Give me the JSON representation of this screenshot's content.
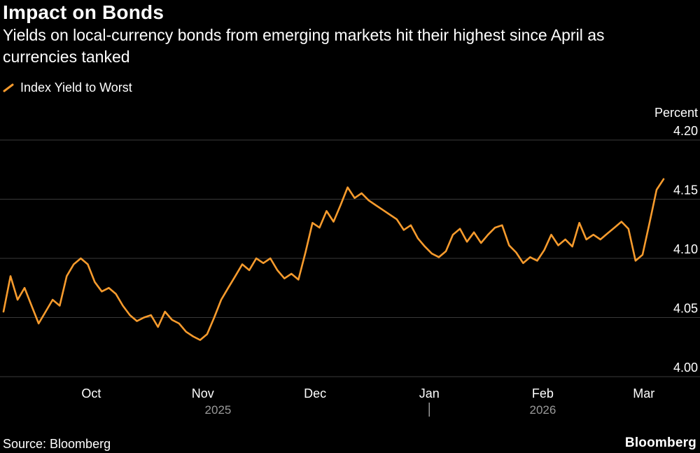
{
  "header": {
    "title": "Impact on Bonds",
    "subtitle": "Yields on local-currency bonds from emerging markets hit their highest since April as currencies tanked"
  },
  "legend": {
    "label": "Index Yield to Worst"
  },
  "footer": {
    "source": "Source: Bloomberg",
    "logo": "Bloomberg"
  },
  "chart_data": {
    "type": "line",
    "title": "Impact on Bonds",
    "ylabel": "Percent",
    "ylim": [
      4.0,
      4.2
    ],
    "yticks": [
      "4.20",
      "4.15",
      "4.10",
      "4.05",
      "4.00"
    ],
    "x_ticks": [
      {
        "label": "Oct",
        "pos": 0.133
      },
      {
        "label": "Nov",
        "pos": 0.302
      },
      {
        "label": "Dec",
        "pos": 0.472
      },
      {
        "label": "Jan",
        "pos": 0.645
      },
      {
        "label": "Feb",
        "pos": 0.817
      },
      {
        "label": "Mar",
        "pos": 0.97
      }
    ],
    "year_labels": [
      {
        "label": "2025",
        "pos": 0.325
      },
      {
        "label": "2026",
        "pos": 0.817
      }
    ],
    "year_divider_pos": 0.645,
    "grid_color": "#3a3a3a",
    "text_color": "#ffffff",
    "muted_color": "#9a9a9a",
    "background": "#000000",
    "series": [
      {
        "name": "Index Yield to Worst",
        "color": "#F79B2D",
        "values": [
          4.055,
          4.085,
          4.065,
          4.075,
          4.06,
          4.045,
          4.055,
          4.065,
          4.06,
          4.085,
          4.095,
          4.1,
          4.095,
          4.08,
          4.072,
          4.075,
          4.07,
          4.06,
          4.052,
          4.047,
          4.05,
          4.052,
          4.042,
          4.055,
          4.048,
          4.045,
          4.038,
          4.034,
          4.031,
          4.036,
          4.05,
          4.065,
          4.075,
          4.085,
          4.095,
          4.09,
          4.1,
          4.096,
          4.1,
          4.09,
          4.083,
          4.087,
          4.082,
          4.105,
          4.13,
          4.126,
          4.14,
          4.131,
          4.145,
          4.16,
          4.151,
          4.155,
          4.149,
          4.145,
          4.141,
          4.137,
          4.133,
          4.124,
          4.128,
          4.117,
          4.11,
          4.104,
          4.101,
          4.106,
          4.12,
          4.125,
          4.114,
          4.122,
          4.113,
          4.12,
          4.126,
          4.128,
          4.111,
          4.105,
          4.096,
          4.101,
          4.098,
          4.107,
          4.12,
          4.111,
          4.116,
          4.11,
          4.13,
          4.116,
          4.12,
          4.116,
          4.121,
          4.126,
          4.131,
          4.125,
          4.098,
          4.103,
          4.13,
          4.158,
          4.167
        ]
      }
    ]
  }
}
